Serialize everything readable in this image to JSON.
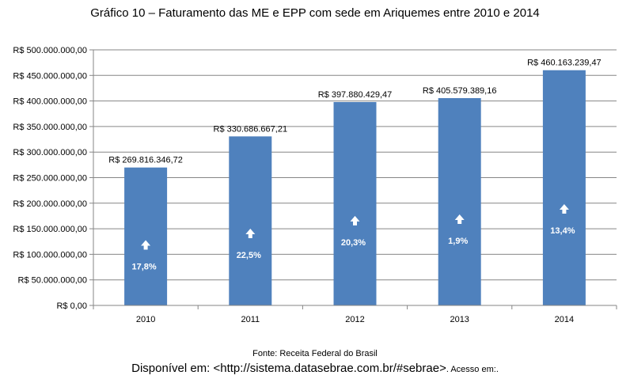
{
  "chart_data": {
    "type": "bar",
    "title": "Gráfico 10 – Faturamento das ME e EPP com sede em Ariquemes entre 2010 e 2014",
    "categories": [
      "2010",
      "2011",
      "2012",
      "2013",
      "2014"
    ],
    "values": [
      269816346.72,
      330686667.21,
      397880429.47,
      405579389.16,
      460163239.47
    ],
    "data_labels": [
      "R$ 269.816.346,72",
      "R$ 330.686.667,21",
      "R$ 397.880.429,47",
      "R$ 405.579.389,16",
      "R$ 460.163.239,47"
    ],
    "growth_labels": [
      "17,8%",
      "22,5%",
      "20,3%",
      "1,9%",
      "13,4%"
    ],
    "growth_icon": "up-arrow-icon",
    "yticks": [
      "R$ 0,00",
      "R$ 50.000.000,00",
      "R$ 100.000.000,00",
      "R$ 150.000.000,00",
      "R$ 200.000.000,00",
      "R$ 250.000.000,00",
      "R$ 300.000.000,00",
      "R$ 350.000.000,00",
      "R$ 400.000.000,00",
      "R$ 450.000.000,00",
      "R$ 500.000.000,00"
    ],
    "ylim": [
      0,
      500000000
    ],
    "ytick_step": 50000000,
    "grid": true,
    "xlabel": "",
    "ylabel": "",
    "bar_color": "#4f81bd",
    "grid_color": "#868686"
  },
  "footer": {
    "source": "Fonte: Receita Federal do Brasil",
    "availability_main": "Disponível em: <http://sistema.datasebrae.com.br/#sebrae>",
    "availability_small": ". Acesso em:."
  }
}
